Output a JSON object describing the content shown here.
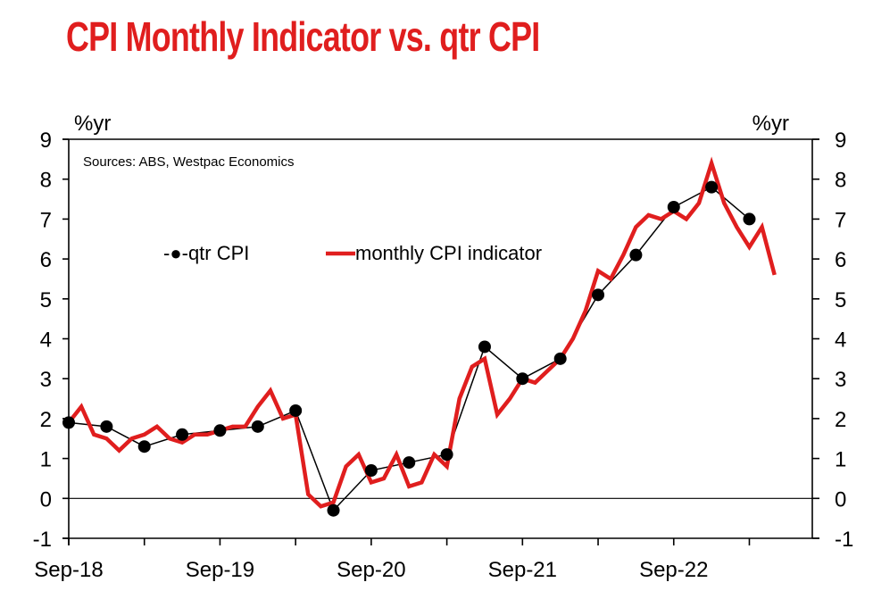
{
  "title": "CPI Monthly Indicator vs. qtr CPI",
  "colors": {
    "title": "#e01e1e",
    "monthly_line": "#e01e1e",
    "quarterly_marker": "#000000",
    "axis": "#000000"
  },
  "chart_data": {
    "type": "line",
    "title": "CPI Monthly Indicator vs. qtr CPI",
    "source": "Sources: ABS, Westpac Economics",
    "ylabel_left": "%yr",
    "ylabel_right": "%yr",
    "xlabel": "",
    "ylim": [
      -1,
      9
    ],
    "yticks": [
      9,
      8,
      7,
      6,
      5,
      4,
      3,
      2,
      1,
      0,
      -1
    ],
    "xrange": [
      "Sep-18",
      "Aug-23"
    ],
    "xtick_labels": [
      "Sep-18",
      "Sep-19",
      "Sep-20",
      "Sep-21",
      "Sep-22"
    ],
    "minor_xticks": [
      "Sep-18",
      "Mar-19",
      "Sep-19",
      "Mar-20",
      "Sep-20",
      "Mar-21",
      "Sep-21",
      "Mar-22",
      "Sep-22",
      "Mar-23"
    ],
    "grid": false,
    "zero_line": true,
    "legend": {
      "placement": "upper-left-middle",
      "entries": [
        {
          "name": "qtr CPI",
          "label": "-●-qtr CPI",
          "style": "black line with circle markers"
        },
        {
          "name": "monthly CPI indicator",
          "label": "monthly CPI indicator",
          "style": "thick red line"
        }
      ]
    },
    "series": [
      {
        "name": "qtr CPI",
        "color": "#000000",
        "x": [
          "Sep-18",
          "Dec-18",
          "Mar-19",
          "Jun-19",
          "Sep-19",
          "Dec-19",
          "Mar-20",
          "Jun-20",
          "Sep-20",
          "Dec-20",
          "Mar-21",
          "Jun-21",
          "Sep-21",
          "Dec-21",
          "Mar-22",
          "Jun-22",
          "Sep-22",
          "Dec-22",
          "Mar-23"
        ],
        "values": [
          1.9,
          1.8,
          1.3,
          1.6,
          1.7,
          1.8,
          2.2,
          -0.3,
          0.7,
          0.9,
          1.1,
          3.8,
          3.0,
          3.5,
          5.1,
          6.1,
          7.3,
          7.8,
          7.0
        ]
      },
      {
        "name": "monthly CPI indicator",
        "color": "#e01e1e",
        "x": [
          "Sep-18",
          "Oct-18",
          "Nov-18",
          "Dec-18",
          "Jan-19",
          "Feb-19",
          "Mar-19",
          "Apr-19",
          "May-19",
          "Jun-19",
          "Jul-19",
          "Aug-19",
          "Sep-19",
          "Oct-19",
          "Nov-19",
          "Dec-19",
          "Jan-20",
          "Feb-20",
          "Mar-20",
          "Apr-20",
          "May-20",
          "Jun-20",
          "Jul-20",
          "Aug-20",
          "Sep-20",
          "Oct-20",
          "Nov-20",
          "Dec-20",
          "Jan-21",
          "Feb-21",
          "Mar-21",
          "Apr-21",
          "May-21",
          "Jun-21",
          "Jul-21",
          "Aug-21",
          "Sep-21",
          "Oct-21",
          "Nov-21",
          "Dec-21",
          "Jan-22",
          "Feb-22",
          "Mar-22",
          "Apr-22",
          "May-22",
          "Jun-22",
          "Jul-22",
          "Aug-22",
          "Sep-22",
          "Oct-22",
          "Nov-22",
          "Dec-22",
          "Jan-23",
          "Feb-23",
          "Mar-23",
          "Apr-23",
          "May-23"
        ],
        "values": [
          1.9,
          2.3,
          1.6,
          1.5,
          1.2,
          1.5,
          1.6,
          1.8,
          1.5,
          1.4,
          1.6,
          1.6,
          1.7,
          1.8,
          1.8,
          2.3,
          2.7,
          2.0,
          2.1,
          0.1,
          -0.2,
          -0.1,
          0.8,
          1.1,
          0.4,
          0.5,
          1.1,
          0.3,
          0.4,
          1.1,
          0.8,
          2.5,
          3.3,
          3.5,
          2.1,
          2.5,
          3.0,
          2.9,
          3.2,
          3.5,
          4.0,
          4.7,
          5.7,
          5.5,
          6.1,
          6.8,
          7.1,
          7.0,
          7.2,
          7.0,
          7.4,
          8.4,
          7.4,
          6.8,
          6.3,
          6.8,
          5.6
        ]
      }
    ]
  }
}
